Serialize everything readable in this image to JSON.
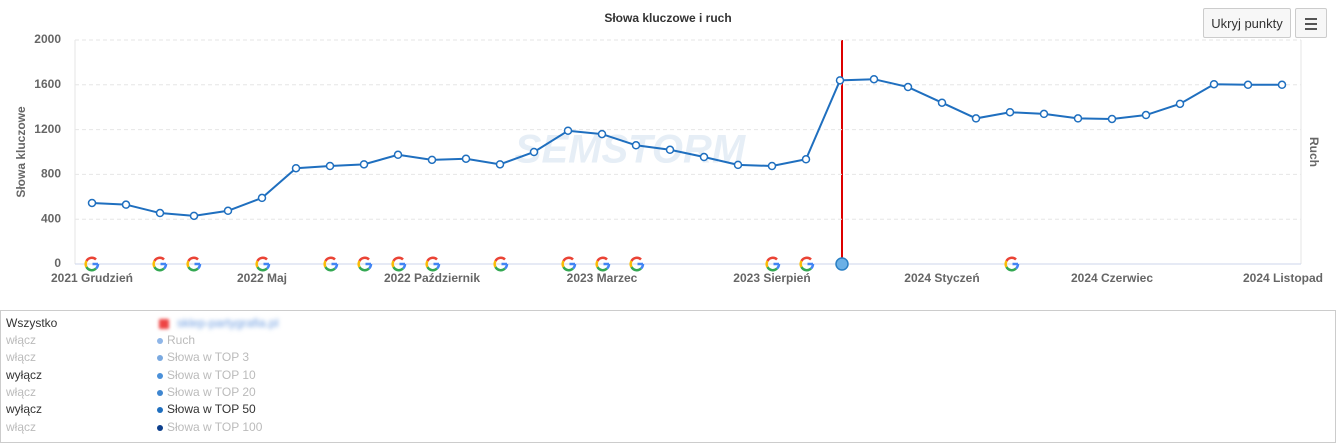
{
  "chart_data": {
    "type": "line",
    "title": "Słowa kluczowe i ruch",
    "y_label": "Słowa kluczowe",
    "y2_label": "Ruch",
    "watermark": "SEMSTORM",
    "categories": [
      "2021 Grudzień",
      null,
      null,
      null,
      null,
      "2022 Maj",
      null,
      null,
      null,
      null,
      "2022 Październik",
      null,
      null,
      null,
      null,
      "2023 Marzec",
      null,
      null,
      null,
      null,
      "2023 Sierpień",
      null,
      null,
      null,
      null,
      "2024 Styczeń",
      null,
      null,
      null,
      null,
      "2024 Czerwiec",
      null,
      null,
      null,
      null,
      "2024 Listopad"
    ],
    "series": [
      {
        "name": "Słowa w TOP 50",
        "color": "#1f6fbf",
        "values": [
          545,
          530,
          455,
          430,
          475,
          590,
          855,
          875,
          890,
          975,
          930,
          940,
          890,
          1000,
          1190,
          1160,
          1060,
          1020,
          955,
          885,
          875,
          935,
          1640,
          1650,
          1580,
          1440,
          1300,
          1355,
          1340,
          1300,
          1295,
          1330,
          1430,
          1605,
          1600,
          1600
        ]
      }
    ],
    "ylim": [
      0,
      2000
    ],
    "yticks": [
      0,
      400,
      800,
      1200,
      1600,
      2000
    ],
    "grid": true
  },
  "controls": {
    "hide_points": "Ukryj punkty"
  },
  "legend_panel": {
    "all": "Wszystko",
    "domain": "sklep-partygrafia.pl",
    "rows": [
      {
        "toggle": "włącz",
        "name": "Ruch",
        "color": "#8fb6e8",
        "active": false
      },
      {
        "toggle": "włącz",
        "name": "Słowa w TOP 3",
        "color": "#7aa9e0",
        "active": false
      },
      {
        "toggle": "wyłącz",
        "name": "Słowa w TOP 10",
        "color": "#4a90d9",
        "active": false
      },
      {
        "toggle": "włącz",
        "name": "Słowa w TOP 20",
        "color": "#3f86d0",
        "active": false
      },
      {
        "toggle": "wyłącz",
        "name": "Słowa w TOP 50",
        "color": "#1f6fbf",
        "active": true
      },
      {
        "toggle": "włącz",
        "name": "Słowa w TOP 100",
        "color": "#0d3f8c",
        "active": false
      }
    ]
  }
}
